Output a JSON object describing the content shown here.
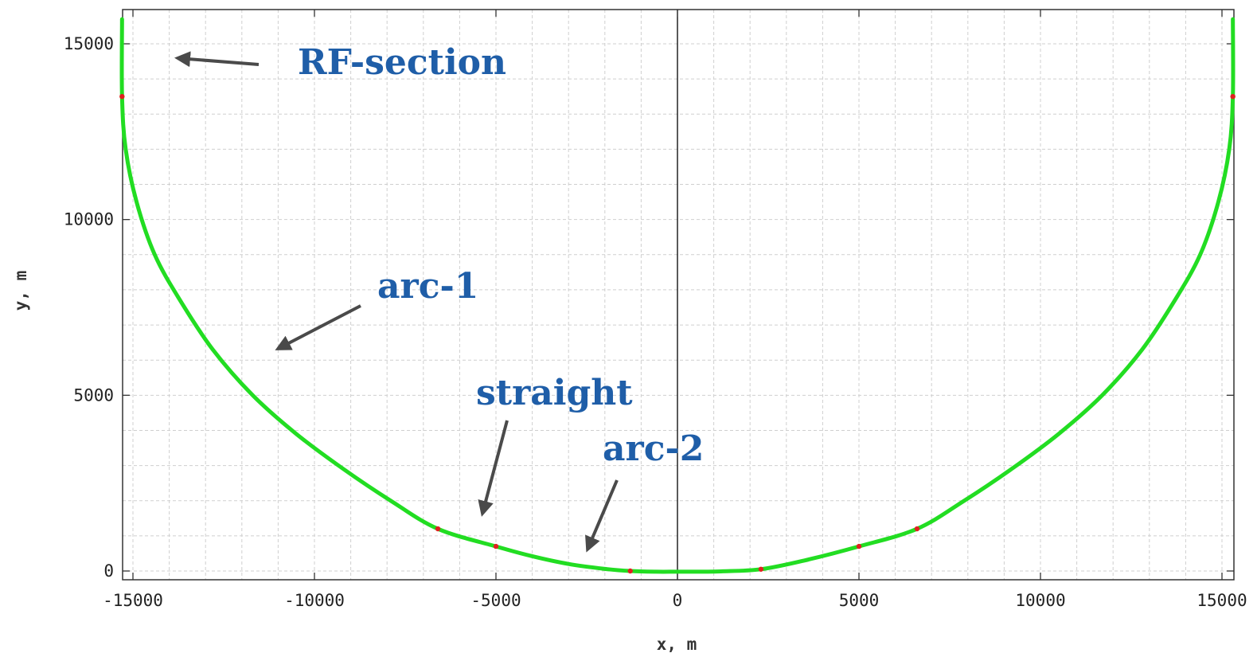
{
  "colors": {
    "curve": "#22dd22",
    "markers": "#e02020",
    "annotation_text": "#1f5ea8",
    "arrow": "#4a4a4a",
    "grid": "#cfcfcf",
    "axis": "#000000"
  },
  "chart_data": {
    "type": "line",
    "title": "",
    "xlabel": "x, m",
    "ylabel": "y, m",
    "xlim": [
      -15500,
      15500
    ],
    "ylim": [
      -300,
      15800
    ],
    "x_ticks": [
      -15000,
      -10000,
      -5000,
      0,
      5000,
      10000,
      15000
    ],
    "x_tick_labels": [
      "-15000",
      "-10000",
      "-5000",
      "0",
      "5000",
      "10000",
      "15000"
    ],
    "y_ticks": [
      0,
      5000,
      10000,
      15000
    ],
    "y_tick_labels": [
      "0",
      "5000",
      "10000",
      "15000"
    ],
    "grid": true,
    "series": [
      {
        "x": [
          -15300,
          -15300,
          -15200,
          -14900,
          -14400,
          -13700,
          -12800,
          -11700,
          -10500,
          -9200,
          -7900,
          -6600,
          -5000,
          -4000,
          -3000,
          -2000,
          -1300,
          -600,
          0,
          600,
          1200,
          2300,
          3500,
          5000,
          6600,
          7900,
          9200,
          10500,
          11700,
          12800,
          13700,
          14400,
          14900,
          15200,
          15300,
          15300
        ],
        "y": [
          15700,
          13500,
          12000,
          10500,
          9000,
          7700,
          6300,
          5000,
          3900,
          2900,
          2000,
          1200,
          700,
          420,
          200,
          60,
          0,
          -20,
          -20,
          -20,
          -10,
          50,
          300,
          700,
          1200,
          2000,
          2900,
          3900,
          5000,
          6300,
          7700,
          9000,
          10500,
          12000,
          13500,
          15700
        ]
      }
    ],
    "markers": {
      "x": [
        -15300,
        -6600,
        -5000,
        -1300,
        2300,
        5000,
        6600,
        15300
      ],
      "y": [
        13500,
        1200,
        700,
        0,
        50,
        700,
        1200,
        13500
      ]
    },
    "annotations": [
      {
        "label": "RF-section",
        "points_to": [
          -14000,
          14600
        ]
      },
      {
        "label": "arc-1",
        "points_to": [
          -11300,
          6300
        ]
      },
      {
        "label": "straight",
        "points_to": [
          -5600,
          1600
        ]
      },
      {
        "label": "arc-2",
        "points_to": [
          -2600,
          500
        ]
      }
    ]
  }
}
